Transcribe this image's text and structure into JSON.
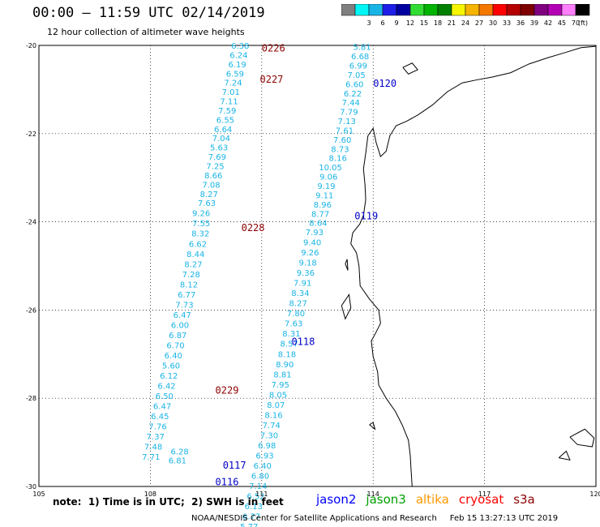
{
  "title": "00:00 – 11:59 UTC 02/14/2019",
  "subtitle": "12 hour collection of altimeter wave heights",
  "colorbar": {
    "colors": [
      "#7f7f7f",
      "#00f5f5",
      "#19b4e6",
      "#1e1ee6",
      "#0000a0",
      "#32dc32",
      "#00b400",
      "#008000",
      "#f5f500",
      "#f5b400",
      "#f57800",
      "#ff0000",
      "#b40000",
      "#7f0000",
      "#7f007f",
      "#b400b4",
      "#ff7fff",
      "#000000"
    ],
    "labels": [
      "3",
      "6",
      "9",
      "12",
      "15",
      "18",
      "21",
      "24",
      "27",
      "30",
      "33",
      "36",
      "39",
      "42",
      "45",
      "70"
    ],
    "unit": "(ft)"
  },
  "map": {
    "lon_min": 105,
    "lon_max": 120,
    "lat_min": -30,
    "lat_max": -20,
    "lon_ticks": [
      105,
      108,
      111,
      114,
      117,
      120
    ],
    "lat_ticks": [
      -20,
      -22,
      -24,
      -26,
      -28,
      -30
    ],
    "lon_tick_labels": [
      "105",
      "108",
      "111",
      "114",
      "117",
      "120"
    ],
    "lat_tick_labels": [
      "-20",
      "-22",
      "-24",
      "-26",
      "-28",
      "-30"
    ],
    "grid": true
  },
  "tracks": [
    {
      "color": "#19b4e6",
      "points": [
        {
          "lon": 110.42,
          "lat": -20.0,
          "v": "6.38"
        },
        {
          "lon": 110.38,
          "lat": -20.21,
          "v": "6.24"
        },
        {
          "lon": 110.34,
          "lat": -20.42,
          "v": "6.19"
        },
        {
          "lon": 110.28,
          "lat": -20.63,
          "v": "6.59"
        },
        {
          "lon": 110.23,
          "lat": -20.84,
          "v": "7.24"
        },
        {
          "lon": 110.17,
          "lat": -21.05,
          "v": "7.01"
        },
        {
          "lon": 110.12,
          "lat": -21.26,
          "v": "7.11"
        },
        {
          "lon": 110.07,
          "lat": -21.47,
          "v": "7.59"
        },
        {
          "lon": 110.02,
          "lat": -21.68,
          "v": "6.55"
        },
        {
          "lon": 109.96,
          "lat": -21.89,
          "v": "6.64"
        },
        {
          "lon": 109.91,
          "lat": -22.1,
          "v": "7.04"
        },
        {
          "lon": 109.85,
          "lat": -22.31,
          "v": "5.63"
        },
        {
          "lon": 109.8,
          "lat": -22.52,
          "v": "7.69"
        },
        {
          "lon": 109.75,
          "lat": -22.73,
          "v": "7.25"
        },
        {
          "lon": 109.7,
          "lat": -22.94,
          "v": "8.66"
        },
        {
          "lon": 109.64,
          "lat": -23.15,
          "v": "7.08"
        },
        {
          "lon": 109.58,
          "lat": -23.36,
          "v": "8.27"
        },
        {
          "lon": 109.52,
          "lat": -23.57,
          "v": "7.63"
        },
        {
          "lon": 109.37,
          "lat": -23.8,
          "v": "9.26"
        },
        {
          "lon": 109.37,
          "lat": -24.03,
          "v": "7.55"
        },
        {
          "lon": 109.35,
          "lat": -24.26,
          "v": "8.32"
        },
        {
          "lon": 109.28,
          "lat": -24.49,
          "v": "6.62"
        },
        {
          "lon": 109.22,
          "lat": -24.72,
          "v": "8.44"
        },
        {
          "lon": 109.16,
          "lat": -24.95,
          "v": "8.27"
        },
        {
          "lon": 109.1,
          "lat": -25.18,
          "v": "7.28"
        },
        {
          "lon": 109.04,
          "lat": -25.41,
          "v": "8.12"
        },
        {
          "lon": 108.98,
          "lat": -25.64,
          "v": "6.77"
        },
        {
          "lon": 108.92,
          "lat": -25.87,
          "v": "7.73"
        },
        {
          "lon": 108.86,
          "lat": -26.1,
          "v": "6.47"
        },
        {
          "lon": 108.8,
          "lat": -26.33,
          "v": "6.00"
        },
        {
          "lon": 108.74,
          "lat": -26.56,
          "v": "6.87"
        },
        {
          "lon": 108.68,
          "lat": -26.79,
          "v": "6.70"
        },
        {
          "lon": 108.62,
          "lat": -27.02,
          "v": "6.40"
        },
        {
          "lon": 108.56,
          "lat": -27.25,
          "v": "5.60"
        },
        {
          "lon": 108.5,
          "lat": -27.48,
          "v": "6.12"
        },
        {
          "lon": 108.44,
          "lat": -27.71,
          "v": "6.42"
        },
        {
          "lon": 108.38,
          "lat": -27.94,
          "v": "6.50"
        },
        {
          "lon": 108.32,
          "lat": -28.17,
          "v": "6.47"
        },
        {
          "lon": 108.26,
          "lat": -28.4,
          "v": "6.45"
        },
        {
          "lon": 108.2,
          "lat": -28.63,
          "v": "7.76"
        },
        {
          "lon": 108.14,
          "lat": -28.86,
          "v": "7.37"
        },
        {
          "lon": 108.08,
          "lat": -29.09,
          "v": "7.48"
        },
        {
          "lon": 108.02,
          "lat": -29.32,
          "v": "7.71"
        },
        {
          "lon": 108.79,
          "lat": -29.2,
          "v": "6.28"
        },
        {
          "lon": 108.73,
          "lat": -29.4,
          "v": "6.81"
        }
      ]
    },
    {
      "color": "#19b4e6",
      "points": [
        {
          "lon": 113.7,
          "lat": -20.03,
          "v": "5.81"
        },
        {
          "lon": 113.65,
          "lat": -20.24,
          "v": "6.68"
        },
        {
          "lon": 113.6,
          "lat": -20.45,
          "v": "6.99"
        },
        {
          "lon": 113.55,
          "lat": -20.66,
          "v": "7.05"
        },
        {
          "lon": 113.5,
          "lat": -20.87,
          "v": "6.60"
        },
        {
          "lon": 113.45,
          "lat": -21.08,
          "v": "6.22"
        },
        {
          "lon": 113.4,
          "lat": -21.29,
          "v": "7.44"
        },
        {
          "lon": 113.35,
          "lat": -21.5,
          "v": "7.79"
        },
        {
          "lon": 113.29,
          "lat": -21.71,
          "v": "7.13"
        },
        {
          "lon": 113.23,
          "lat": -21.92,
          "v": "7.61"
        },
        {
          "lon": 113.17,
          "lat": -22.13,
          "v": "7.60"
        },
        {
          "lon": 113.11,
          "lat": -22.34,
          "v": "8.73"
        },
        {
          "lon": 113.05,
          "lat": -22.55,
          "v": "8.16"
        },
        {
          "lon": 112.85,
          "lat": -22.76,
          "v": "10.05"
        },
        {
          "lon": 112.8,
          "lat": -22.97,
          "v": "9.06"
        },
        {
          "lon": 112.74,
          "lat": -23.18,
          "v": "9.19"
        },
        {
          "lon": 112.69,
          "lat": -23.39,
          "v": "9.11"
        },
        {
          "lon": 112.64,
          "lat": -23.6,
          "v": "8.96"
        },
        {
          "lon": 112.58,
          "lat": -23.81,
          "v": "8.77"
        },
        {
          "lon": 112.52,
          "lat": -24.02,
          "v": "8.64"
        },
        {
          "lon": 112.42,
          "lat": -24.23,
          "v": "7.93"
        },
        {
          "lon": 112.36,
          "lat": -24.46,
          "v": "9.40"
        },
        {
          "lon": 112.3,
          "lat": -24.69,
          "v": "9.26"
        },
        {
          "lon": 112.24,
          "lat": -24.92,
          "v": "9.18"
        },
        {
          "lon": 112.18,
          "lat": -25.15,
          "v": "9.36"
        },
        {
          "lon": 112.1,
          "lat": -25.38,
          "v": "7.91"
        },
        {
          "lon": 112.04,
          "lat": -25.61,
          "v": "8.34"
        },
        {
          "lon": 111.98,
          "lat": -25.84,
          "v": "8.27"
        },
        {
          "lon": 111.92,
          "lat": -26.07,
          "v": "7.80"
        },
        {
          "lon": 111.86,
          "lat": -26.3,
          "v": "7.63"
        },
        {
          "lon": 111.8,
          "lat": -26.53,
          "v": "8.31"
        },
        {
          "lon": 111.74,
          "lat": -26.76,
          "v": "8.57"
        },
        {
          "lon": 111.68,
          "lat": -26.99,
          "v": "8.18"
        },
        {
          "lon": 111.62,
          "lat": -27.22,
          "v": "8.90"
        },
        {
          "lon": 111.56,
          "lat": -27.45,
          "v": "8.81"
        },
        {
          "lon": 111.5,
          "lat": -27.68,
          "v": "7.95"
        },
        {
          "lon": 111.44,
          "lat": -27.91,
          "v": "8.05"
        },
        {
          "lon": 111.38,
          "lat": -28.14,
          "v": "8.07"
        },
        {
          "lon": 111.32,
          "lat": -28.37,
          "v": "8.16"
        },
        {
          "lon": 111.26,
          "lat": -28.6,
          "v": "7.74"
        },
        {
          "lon": 111.2,
          "lat": -28.83,
          "v": "7.30"
        },
        {
          "lon": 111.14,
          "lat": -29.06,
          "v": "6.98"
        },
        {
          "lon": 111.08,
          "lat": -29.29,
          "v": "6.93"
        },
        {
          "lon": 111.02,
          "lat": -29.52,
          "v": "6.40"
        },
        {
          "lon": 110.96,
          "lat": -29.75,
          "v": "6.80"
        },
        {
          "lon": 110.9,
          "lat": -29.98,
          "v": "7.14"
        },
        {
          "lon": 110.84,
          "lat": -30.21,
          "v": "6.52"
        },
        {
          "lon": 110.78,
          "lat": -30.44,
          "v": "6.13"
        },
        {
          "lon": 110.72,
          "lat": -30.67,
          "v": "6.77"
        },
        {
          "lon": 110.66,
          "lat": -30.9,
          "v": "5.77"
        }
      ]
    }
  ],
  "time_labels": [
    {
      "text": "0226",
      "lon": 111.0,
      "lat": -20.05,
      "color": "#8b0000"
    },
    {
      "text": "0227",
      "lon": 110.95,
      "lat": -20.75,
      "color": "#8b0000"
    },
    {
      "text": "0120",
      "lon": 114.0,
      "lat": -20.85,
      "color": "#0000c8"
    },
    {
      "text": "0119",
      "lon": 113.5,
      "lat": -23.85,
      "color": "#0000c8"
    },
    {
      "text": "0228",
      "lon": 110.45,
      "lat": -24.12,
      "color": "#8b0000"
    },
    {
      "text": "0118",
      "lon": 111.8,
      "lat": -26.7,
      "color": "#0000c8"
    },
    {
      "text": "0229",
      "lon": 109.75,
      "lat": -27.8,
      "color": "#8b0000"
    },
    {
      "text": "0117",
      "lon": 109.95,
      "lat": -29.5,
      "color": "#0000c8"
    },
    {
      "text": "0116",
      "lon": 109.75,
      "lat": -29.88,
      "color": "#0000c8"
    }
  ],
  "coastline": [
    [
      120.0,
      -20.02
    ],
    [
      119.6,
      -20.05
    ],
    [
      119.1,
      -20.18
    ],
    [
      118.7,
      -20.28
    ],
    [
      118.2,
      -20.42
    ],
    [
      117.7,
      -20.62
    ],
    [
      117.2,
      -20.72
    ],
    [
      116.8,
      -20.78
    ],
    [
      116.4,
      -20.85
    ],
    [
      116.0,
      -21.05
    ],
    [
      115.6,
      -21.35
    ],
    [
      115.2,
      -21.58
    ],
    [
      114.9,
      -21.72
    ],
    [
      114.62,
      -21.82
    ],
    [
      114.45,
      -22.05
    ],
    [
      114.35,
      -22.4
    ],
    [
      114.2,
      -22.52
    ],
    [
      114.08,
      -22.2
    ],
    [
      114.0,
      -21.88
    ],
    [
      113.86,
      -22.05
    ],
    [
      113.8,
      -22.45
    ],
    [
      113.74,
      -22.8
    ],
    [
      113.78,
      -23.15
    ],
    [
      113.8,
      -23.5
    ],
    [
      113.74,
      -23.85
    ],
    [
      113.64,
      -24.05
    ],
    [
      113.45,
      -24.25
    ],
    [
      113.4,
      -24.5
    ],
    [
      113.55,
      -24.7
    ],
    [
      113.62,
      -25.0
    ],
    [
      113.65,
      -25.45
    ],
    [
      113.9,
      -25.75
    ],
    [
      114.15,
      -26.0
    ],
    [
      114.2,
      -26.3
    ],
    [
      114.05,
      -26.55
    ],
    [
      113.95,
      -26.7
    ],
    [
      114.0,
      -27.05
    ],
    [
      114.12,
      -27.4
    ],
    [
      114.15,
      -27.7
    ],
    [
      114.35,
      -28.0
    ],
    [
      114.6,
      -28.3
    ],
    [
      114.78,
      -28.6
    ],
    [
      114.95,
      -28.95
    ],
    [
      115.0,
      -29.3
    ],
    [
      115.02,
      -29.6
    ],
    [
      115.05,
      -30.0
    ]
  ],
  "islands": [
    [
      [
        114.8,
        -20.5
      ],
      [
        115.05,
        -20.4
      ],
      [
        115.2,
        -20.55
      ],
      [
        114.95,
        -20.65
      ],
      [
        114.8,
        -20.5
      ]
    ],
    [
      [
        113.15,
        -25.9
      ],
      [
        113.35,
        -25.65
      ],
      [
        113.4,
        -25.95
      ],
      [
        113.25,
        -26.2
      ],
      [
        113.15,
        -25.9
      ]
    ],
    [
      [
        113.25,
        -24.95
      ],
      [
        113.3,
        -24.85
      ],
      [
        113.32,
        -25.1
      ],
      [
        113.25,
        -24.95
      ]
    ],
    [
      [
        113.9,
        -28.6
      ],
      [
        114.0,
        -28.55
      ],
      [
        114.05,
        -28.7
      ],
      [
        113.9,
        -28.6
      ]
    ],
    [
      [
        119.3,
        -28.88
      ],
      [
        119.7,
        -28.7
      ],
      [
        119.95,
        -28.9
      ],
      [
        119.9,
        -29.1
      ],
      [
        119.5,
        -29.05
      ],
      [
        119.3,
        -28.88
      ]
    ],
    [
      [
        119.0,
        -29.35
      ],
      [
        119.2,
        -29.2
      ],
      [
        119.3,
        -29.4
      ],
      [
        119.0,
        -29.35
      ]
    ]
  ],
  "satellites": [
    {
      "name": "jason2",
      "color": "#0000ff"
    },
    {
      "name": "jason3",
      "color": "#00a000"
    },
    {
      "name": "altika",
      "color": "#ff9900"
    },
    {
      "name": "cryosat",
      "color": "#ff0000"
    },
    {
      "name": "s3a",
      "color": "#8b0000"
    }
  ],
  "note": "note:  1) Time is in UTC;  2) SWH is in feet",
  "credit": "NOAA/NESDIS Center for Satellite Applications and Research     Feb 15 13:27:13 UTC 2019"
}
